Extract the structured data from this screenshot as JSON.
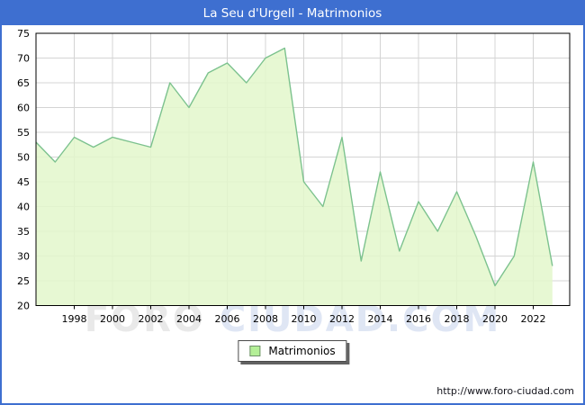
{
  "title": "La Seu d'Urgell - Matrimonios",
  "legend": {
    "label": "Matrimonios"
  },
  "watermark": {
    "left": "FORO",
    "right": "CIUDAD.COM"
  },
  "footer": {
    "url": "http://www.foro-ciudad.com"
  },
  "colors": {
    "titlebar_bg": "#3e6fd0",
    "titlebar_text": "#ffffff",
    "frame_border": "#3e6fd0",
    "line": "#7cc28e",
    "fill": "#e3f7cb",
    "legend_swatch": "#b4ef97",
    "grid": "#d4d4d4",
    "axis_border": "#000000",
    "axis_text": "#000000"
  },
  "chart_data": {
    "type": "area",
    "title": "La Seu d'Urgell - Matrimonios",
    "x": [
      1996,
      1997,
      1998,
      1999,
      2000,
      2001,
      2002,
      2003,
      2004,
      2005,
      2006,
      2007,
      2008,
      2009,
      2010,
      2011,
      2012,
      2013,
      2014,
      2015,
      2016,
      2017,
      2018,
      2019,
      2020,
      2021,
      2022,
      2023
    ],
    "series": [
      {
        "name": "Matrimonios",
        "values": [
          53,
          49,
          54,
          52,
          54,
          53,
          52,
          65,
          60,
          67,
          69,
          65,
          70,
          72,
          45,
          40,
          54,
          29,
          47,
          31,
          41,
          35,
          43,
          34,
          24,
          30,
          49,
          28
        ]
      }
    ],
    "ylim": [
      20,
      75
    ],
    "yticks": [
      75,
      70,
      65,
      60,
      55,
      50,
      45,
      40,
      35,
      30,
      25,
      20
    ],
    "xticks": [
      1998,
      2000,
      2002,
      2004,
      2006,
      2008,
      2010,
      2012,
      2014,
      2016,
      2018,
      2020,
      2022
    ],
    "grid": true,
    "legend_position": "bottom-center"
  }
}
